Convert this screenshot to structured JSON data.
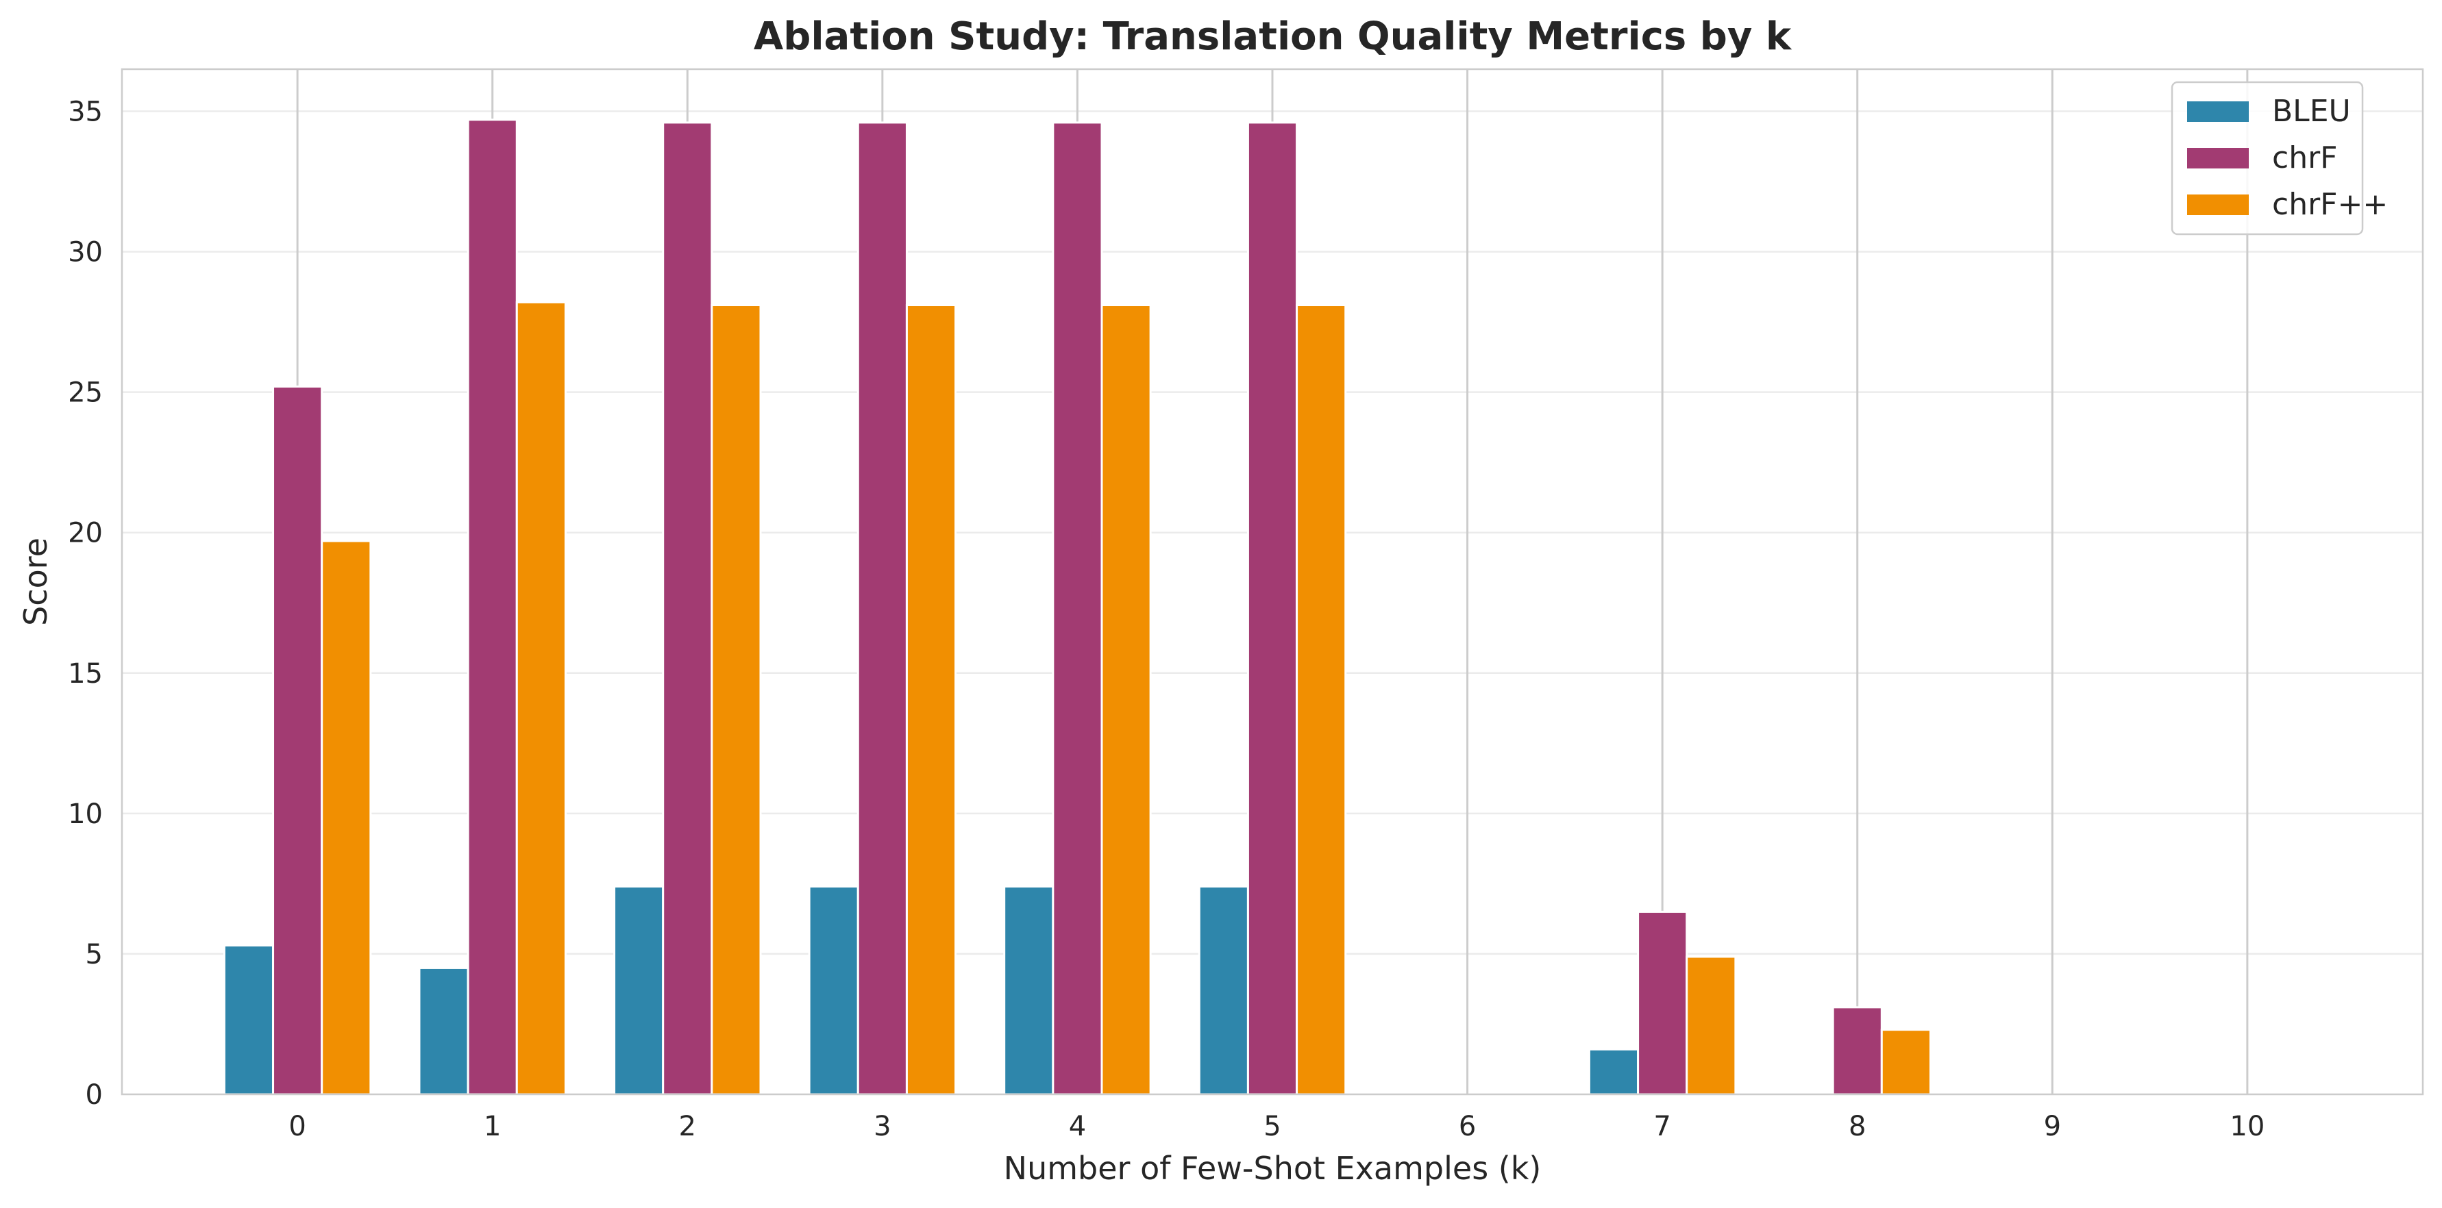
{
  "chart_data": {
    "type": "bar",
    "title": "Ablation Study: Translation Quality Metrics by k",
    "xlabel": "Number of Few-Shot Examples (k)",
    "ylabel": "Score",
    "categories": [
      "0",
      "1",
      "2",
      "3",
      "4",
      "5",
      "6",
      "7",
      "8",
      "9",
      "10"
    ],
    "ylim": [
      0,
      36.5
    ],
    "yticks": [
      0,
      5,
      10,
      15,
      20,
      25,
      30,
      35
    ],
    "grid": true,
    "legend_position": "top-right",
    "series": [
      {
        "name": "BLEU",
        "color": "#2e86ab",
        "values": [
          5.3,
          4.5,
          7.4,
          7.4,
          7.4,
          7.4,
          0,
          1.6,
          0,
          0,
          0
        ]
      },
      {
        "name": "chrF",
        "color": "#a23b72",
        "values": [
          25.2,
          34.7,
          34.6,
          34.6,
          34.6,
          34.6,
          0,
          6.5,
          3.1,
          0,
          0
        ]
      },
      {
        "name": "chrF++",
        "color": "#f18f01",
        "values": [
          19.7,
          28.2,
          28.1,
          28.1,
          28.1,
          28.1,
          0,
          4.9,
          2.3,
          0,
          0
        ]
      }
    ]
  }
}
